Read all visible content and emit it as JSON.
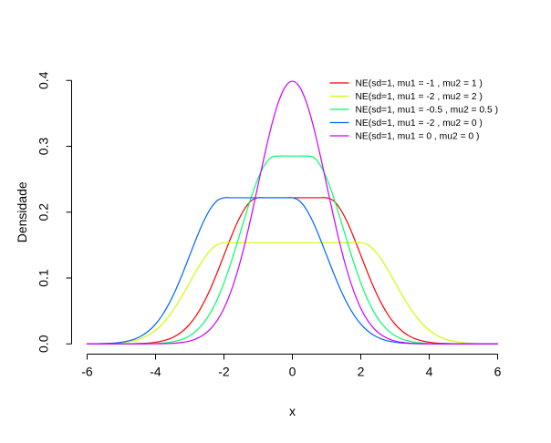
{
  "figure": {
    "background": "#ffffff",
    "axis_color": "#000000"
  },
  "chart_data": {
    "type": "line",
    "title": "",
    "xlabel": "x",
    "ylabel": "Densidade",
    "xlim": [
      -6,
      6
    ],
    "ylim": [
      0,
      0.4
    ],
    "grid": false,
    "x_ticks": [
      -6,
      -4,
      -2,
      0,
      2,
      4,
      6
    ],
    "x_tick_labels": [
      "-6",
      "-4",
      "-2",
      "0",
      "2",
      "4",
      "6"
    ],
    "y_ticks": [
      0,
      0.1,
      0.2,
      0.3,
      0.4
    ],
    "y_tick_labels": [
      "0.0",
      "0.1",
      "0.2",
      "0.3",
      "0.4"
    ],
    "legend_position": "top-right",
    "legend_bordered": false,
    "x_start": -6,
    "x_step": 0.2,
    "n_points": 61,
    "series": [
      {
        "name": "NE(sd=1, mu1 = -1 , mu2 = 1 )",
        "color": "#FF0000",
        "params": {
          "sd": 1,
          "mu1": -1,
          "mu2": 1
        },
        "y": [
          0,
          0,
          0,
          0,
          0,
          0.0001,
          0.0002,
          0.0003,
          0.0007,
          0.0013,
          0.0025,
          0.0044,
          0.0075,
          0.0124,
          0.0197,
          0.03,
          0.0439,
          0.0617,
          0.0833,
          0.108,
          0.1346,
          0.1611,
          0.1854,
          0.2048,
          0.2175,
          0.2219,
          0.2219,
          0.2219,
          0.2219,
          0.2219,
          0.2219,
          0.2219,
          0.2219,
          0.2219,
          0.2219,
          0.2219,
          0.2175,
          0.2048,
          0.1854,
          0.1611,
          0.1346,
          0.108,
          0.0833,
          0.0617,
          0.0439,
          0.03,
          0.0197,
          0.0124,
          0.0075,
          0.0044,
          0.0025,
          0.0013,
          0.0007,
          0.0003,
          0.0002,
          0.0001,
          0,
          0,
          0,
          0,
          0
        ]
      },
      {
        "name": "NE(sd=1, mu1 = -2 , mu2 = 2 )",
        "color": "#CCFF00",
        "params": {
          "sd": 1,
          "mu1": -2,
          "mu2": 2
        },
        "y": [
          0.0001,
          0.0001,
          0.0002,
          0.0005,
          0.0009,
          0.0017,
          0.0031,
          0.0052,
          0.0086,
          0.0137,
          0.0208,
          0.0304,
          0.0427,
          0.0577,
          0.0748,
          0.0932,
          0.1116,
          0.1284,
          0.1419,
          0.1506,
          0.1537,
          0.1537,
          0.1537,
          0.1537,
          0.1537,
          0.1537,
          0.1537,
          0.1537,
          0.1537,
          0.1537,
          0.1537,
          0.1537,
          0.1537,
          0.1537,
          0.1537,
          0.1537,
          0.1537,
          0.1537,
          0.1537,
          0.1537,
          0.1537,
          0.1506,
          0.1419,
          0.1284,
          0.1116,
          0.0932,
          0.0748,
          0.0577,
          0.0427,
          0.0304,
          0.0208,
          0.0137,
          0.0086,
          0.0052,
          0.0031,
          0.0017,
          0.0009,
          0.0005,
          0.0002,
          0.0001,
          0.0001
        ]
      },
      {
        "name": "NE(sd=1, mu1 = -0.5 , mu2 = 0.5 )",
        "color": "#00FF66",
        "params": {
          "sd": 1,
          "mu1": -0.5,
          "mu2": 0.5
        },
        "y": [
          0,
          0,
          0,
          0,
          0,
          0,
          0,
          0.0001,
          0.0001,
          0.0003,
          0.0006,
          0.0012,
          0.0023,
          0.0043,
          0.0074,
          0.0125,
          0.0203,
          0.0315,
          0.0469,
          0.0672,
          0.0926,
          0.1225,
          0.1557,
          0.1902,
          0.2232,
          0.2517,
          0.2726,
          0.2837,
          0.2852,
          0.2852,
          0.2852,
          0.2852,
          0.2852,
          0.2837,
          0.2726,
          0.2517,
          0.2232,
          0.1902,
          0.1557,
          0.1225,
          0.0926,
          0.0672,
          0.0469,
          0.0315,
          0.0203,
          0.0125,
          0.0074,
          0.0043,
          0.0023,
          0.0012,
          0.0006,
          0.0003,
          0.0001,
          0.0001,
          0,
          0,
          0,
          0,
          0,
          0,
          0
        ]
      },
      {
        "name": "NE(sd=1, mu1 = -2 , mu2 = 0 )",
        "color": "#0066FF",
        "params": {
          "sd": 1,
          "mu1": -2,
          "mu2": 0
        },
        "y": [
          0.0001,
          0.0002,
          0.0003,
          0.0007,
          0.0013,
          0.0025,
          0.0044,
          0.0075,
          0.0124,
          0.0197,
          0.03,
          0.0439,
          0.0617,
          0.0833,
          0.108,
          0.1346,
          0.1611,
          0.1854,
          0.2048,
          0.2175,
          0.2219,
          0.2219,
          0.2219,
          0.2219,
          0.2219,
          0.2219,
          0.2219,
          0.2219,
          0.2219,
          0.2219,
          0.2219,
          0.2175,
          0.2048,
          0.1854,
          0.1611,
          0.1346,
          0.108,
          0.0833,
          0.0617,
          0.0439,
          0.03,
          0.0197,
          0.0124,
          0.0075,
          0.0044,
          0.0025,
          0.0013,
          0.0007,
          0.0003,
          0.0002,
          0.0001,
          0,
          0,
          0,
          0,
          0,
          0,
          0,
          0,
          0,
          0
        ]
      },
      {
        "name": "NE(sd=1, mu1 = 0 , mu2 = 0 )",
        "color": "#CC00FF",
        "params": {
          "sd": 1,
          "mu1": 0,
          "mu2": 0
        },
        "y": [
          0,
          0,
          0,
          0,
          0,
          0,
          0,
          0,
          0,
          0.0001,
          0.0001,
          0.0003,
          0.0006,
          0.0012,
          0.0024,
          0.0044,
          0.0079,
          0.0136,
          0.0224,
          0.0355,
          0.054,
          0.079,
          0.1109,
          0.1497,
          0.1942,
          0.242,
          0.2897,
          0.3332,
          0.3683,
          0.391,
          0.3989,
          0.391,
          0.3683,
          0.3332,
          0.2897,
          0.242,
          0.1942,
          0.1497,
          0.1109,
          0.079,
          0.054,
          0.0355,
          0.0224,
          0.0136,
          0.0079,
          0.0044,
          0.0024,
          0.0012,
          0.0006,
          0.0003,
          0.0001,
          0.0001,
          0,
          0,
          0,
          0,
          0,
          0,
          0,
          0,
          0
        ]
      }
    ]
  }
}
